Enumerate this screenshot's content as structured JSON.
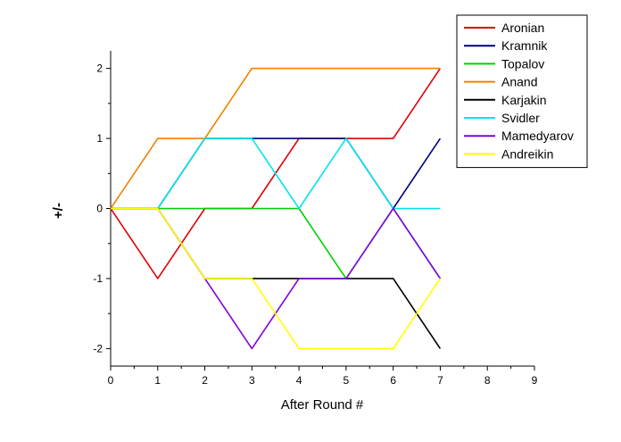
{
  "chart_data": {
    "type": "line",
    "title": "",
    "xlabel": "After Round #",
    "ylabel": "+/-",
    "xlim": [
      0,
      9
    ],
    "ylim": [
      -2.25,
      2.25
    ],
    "x_ticks": [
      0,
      1,
      2,
      3,
      4,
      5,
      6,
      7,
      8,
      9
    ],
    "y_ticks": [
      -2,
      -1,
      0,
      1,
      2
    ],
    "grid": false,
    "legend_position": "top-right",
    "x": [
      0,
      1,
      2,
      3,
      4,
      5,
      6,
      7
    ],
    "series": [
      {
        "name": "Aronian",
        "color": "#e00000",
        "values": [
          0,
          -1,
          0,
          0,
          1,
          1,
          1,
          2
        ]
      },
      {
        "name": "Kramnik",
        "color": "#000080",
        "values": [
          0,
          0,
          1,
          1,
          1,
          1,
          0,
          1
        ]
      },
      {
        "name": "Topalov",
        "color": "#00d000",
        "values": [
          0,
          0,
          0,
          0,
          0,
          -1,
          0,
          -1
        ]
      },
      {
        "name": "Anand",
        "color": "#f08000",
        "values": [
          0,
          1,
          1,
          2,
          2,
          2,
          2,
          2
        ]
      },
      {
        "name": "Karjakin",
        "color": "#000000",
        "values": [
          0,
          0,
          -1,
          -1,
          -1,
          -1,
          -1,
          -2
        ]
      },
      {
        "name": "Svidler",
        "color": "#00e5f0",
        "values": [
          0,
          0,
          1,
          1,
          0,
          1,
          0,
          0
        ]
      },
      {
        "name": "Mamedyarov",
        "color": "#8000e0",
        "values": [
          0,
          0,
          -1,
          -2,
          -1,
          -1,
          0,
          -1
        ]
      },
      {
        "name": "Andreikin",
        "color": "#ffff00",
        "values": [
          0,
          0,
          -1,
          -1,
          -2,
          -2,
          -2,
          -1
        ]
      }
    ]
  }
}
